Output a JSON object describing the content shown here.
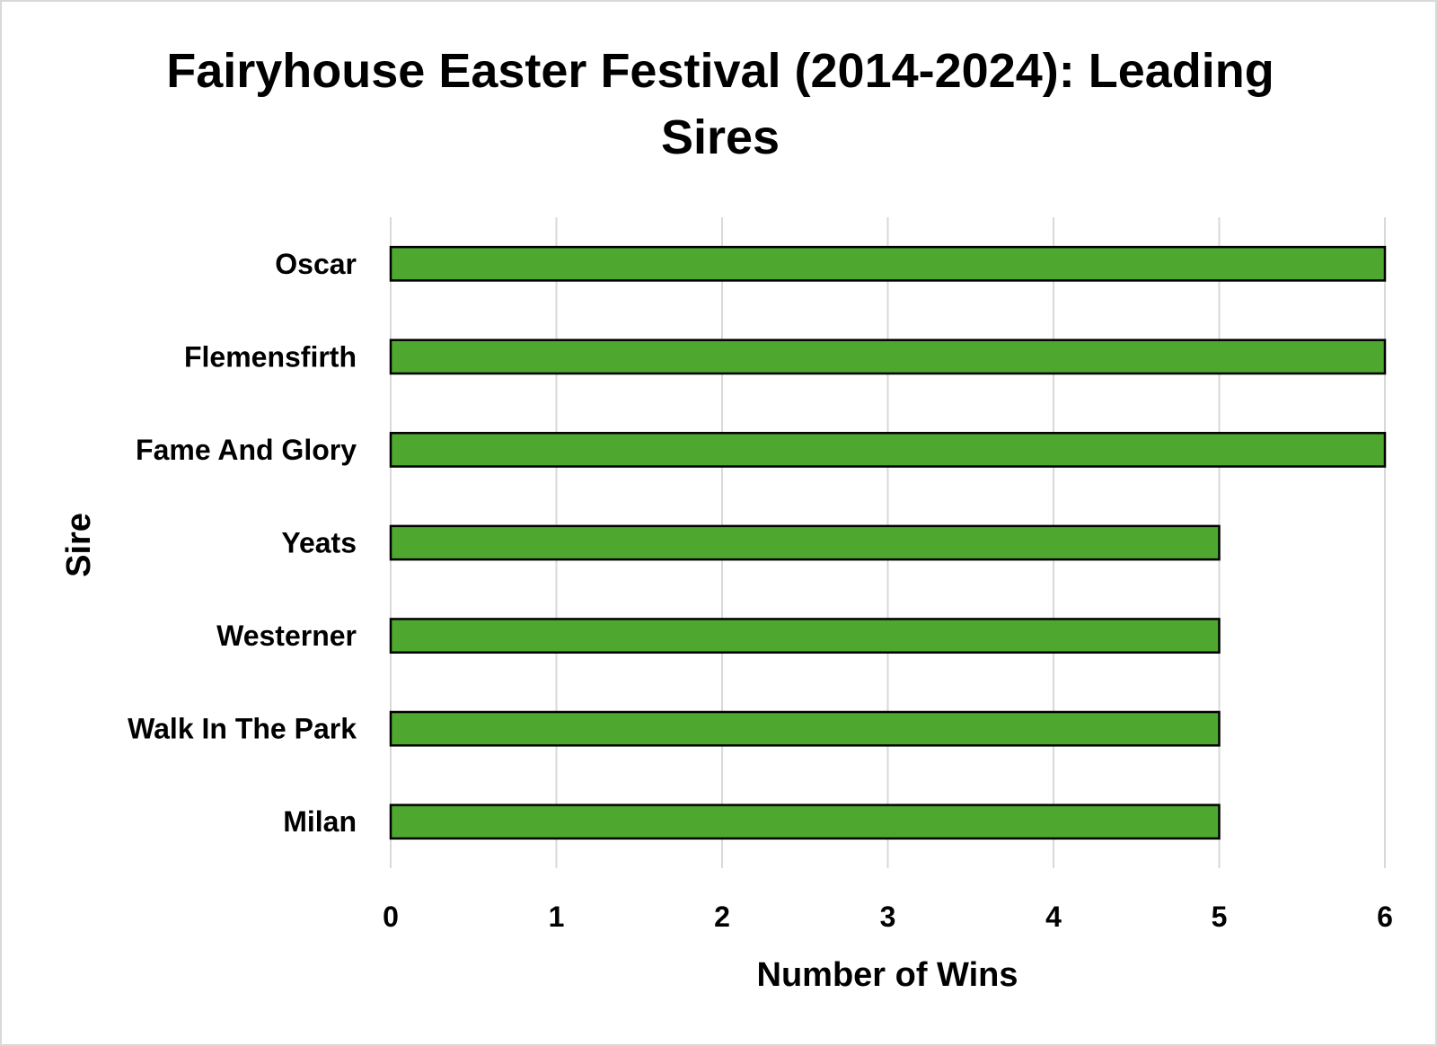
{
  "chart_data": {
    "type": "bar",
    "orientation": "horizontal",
    "title": "Fairyhouse Easter Festival (2014-2024): Leading Sires",
    "xlabel": "Number of Wins",
    "ylabel": "Sire",
    "categories": [
      "Oscar",
      "Flemensfirth",
      "Fame And Glory",
      "Yeats",
      "Westerner",
      "Walk In The Park",
      "Milan"
    ],
    "values": [
      6,
      6,
      6,
      5,
      5,
      5,
      5
    ],
    "xlim": [
      0,
      6
    ],
    "xticks": [
      "0",
      "1",
      "2",
      "3",
      "4",
      "5",
      "6"
    ],
    "grid": true,
    "legend": "none",
    "bar_color": "#4ea72e",
    "bar_outline_color": "#000000",
    "grid_color": "#d9d9d9"
  }
}
